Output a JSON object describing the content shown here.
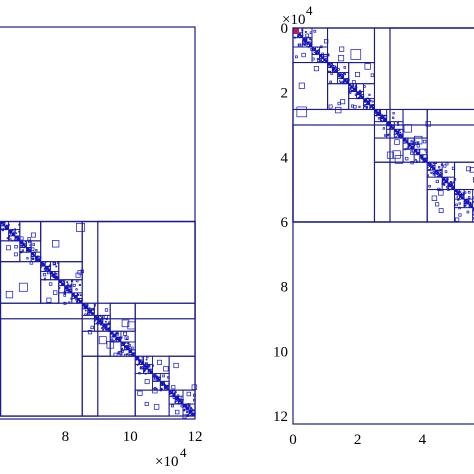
{
  "chart_data": [
    {
      "type": "heatmap",
      "description_free": true,
      "xlim": [
        0,
        12
      ],
      "x_ticks": [
        "8",
        "10",
        "12"
      ],
      "x_tick_values": [
        8,
        10,
        12
      ],
      "x_scale_label": "×10",
      "x_scale_exp": "4",
      "dense_diagonal_from": 6,
      "coarse_blocks": [
        [
          6,
          12,
          6,
          12
        ],
        [
          6,
          9,
          9,
          12
        ],
        [
          9,
          12,
          6,
          9
        ]
      ],
      "colors": {
        "frame": "#1b1b8a",
        "dense": "#1212c8"
      }
    },
    {
      "type": "heatmap",
      "xlim": [
        0,
        12
      ],
      "ylim": [
        0,
        12
      ],
      "x_ticks": [
        "0",
        "2",
        "4"
      ],
      "x_tick_values": [
        0,
        2,
        4
      ],
      "y_ticks": [
        "0",
        "2",
        "4",
        "6",
        "8",
        "10",
        "12"
      ],
      "y_tick_values": [
        0,
        2,
        4,
        6,
        8,
        10,
        12
      ],
      "y_scale_label": "×10",
      "y_scale_exp": "4",
      "dense_diagonal_to": 6,
      "coarse_blocks": [
        [
          0,
          6,
          0,
          6
        ],
        [
          0,
          3,
          3,
          6
        ],
        [
          3,
          6,
          0,
          3
        ]
      ],
      "colors": {
        "frame": "#1b1b8a",
        "dense": "#1212c8",
        "first_pivot": "#b02060"
      }
    }
  ]
}
